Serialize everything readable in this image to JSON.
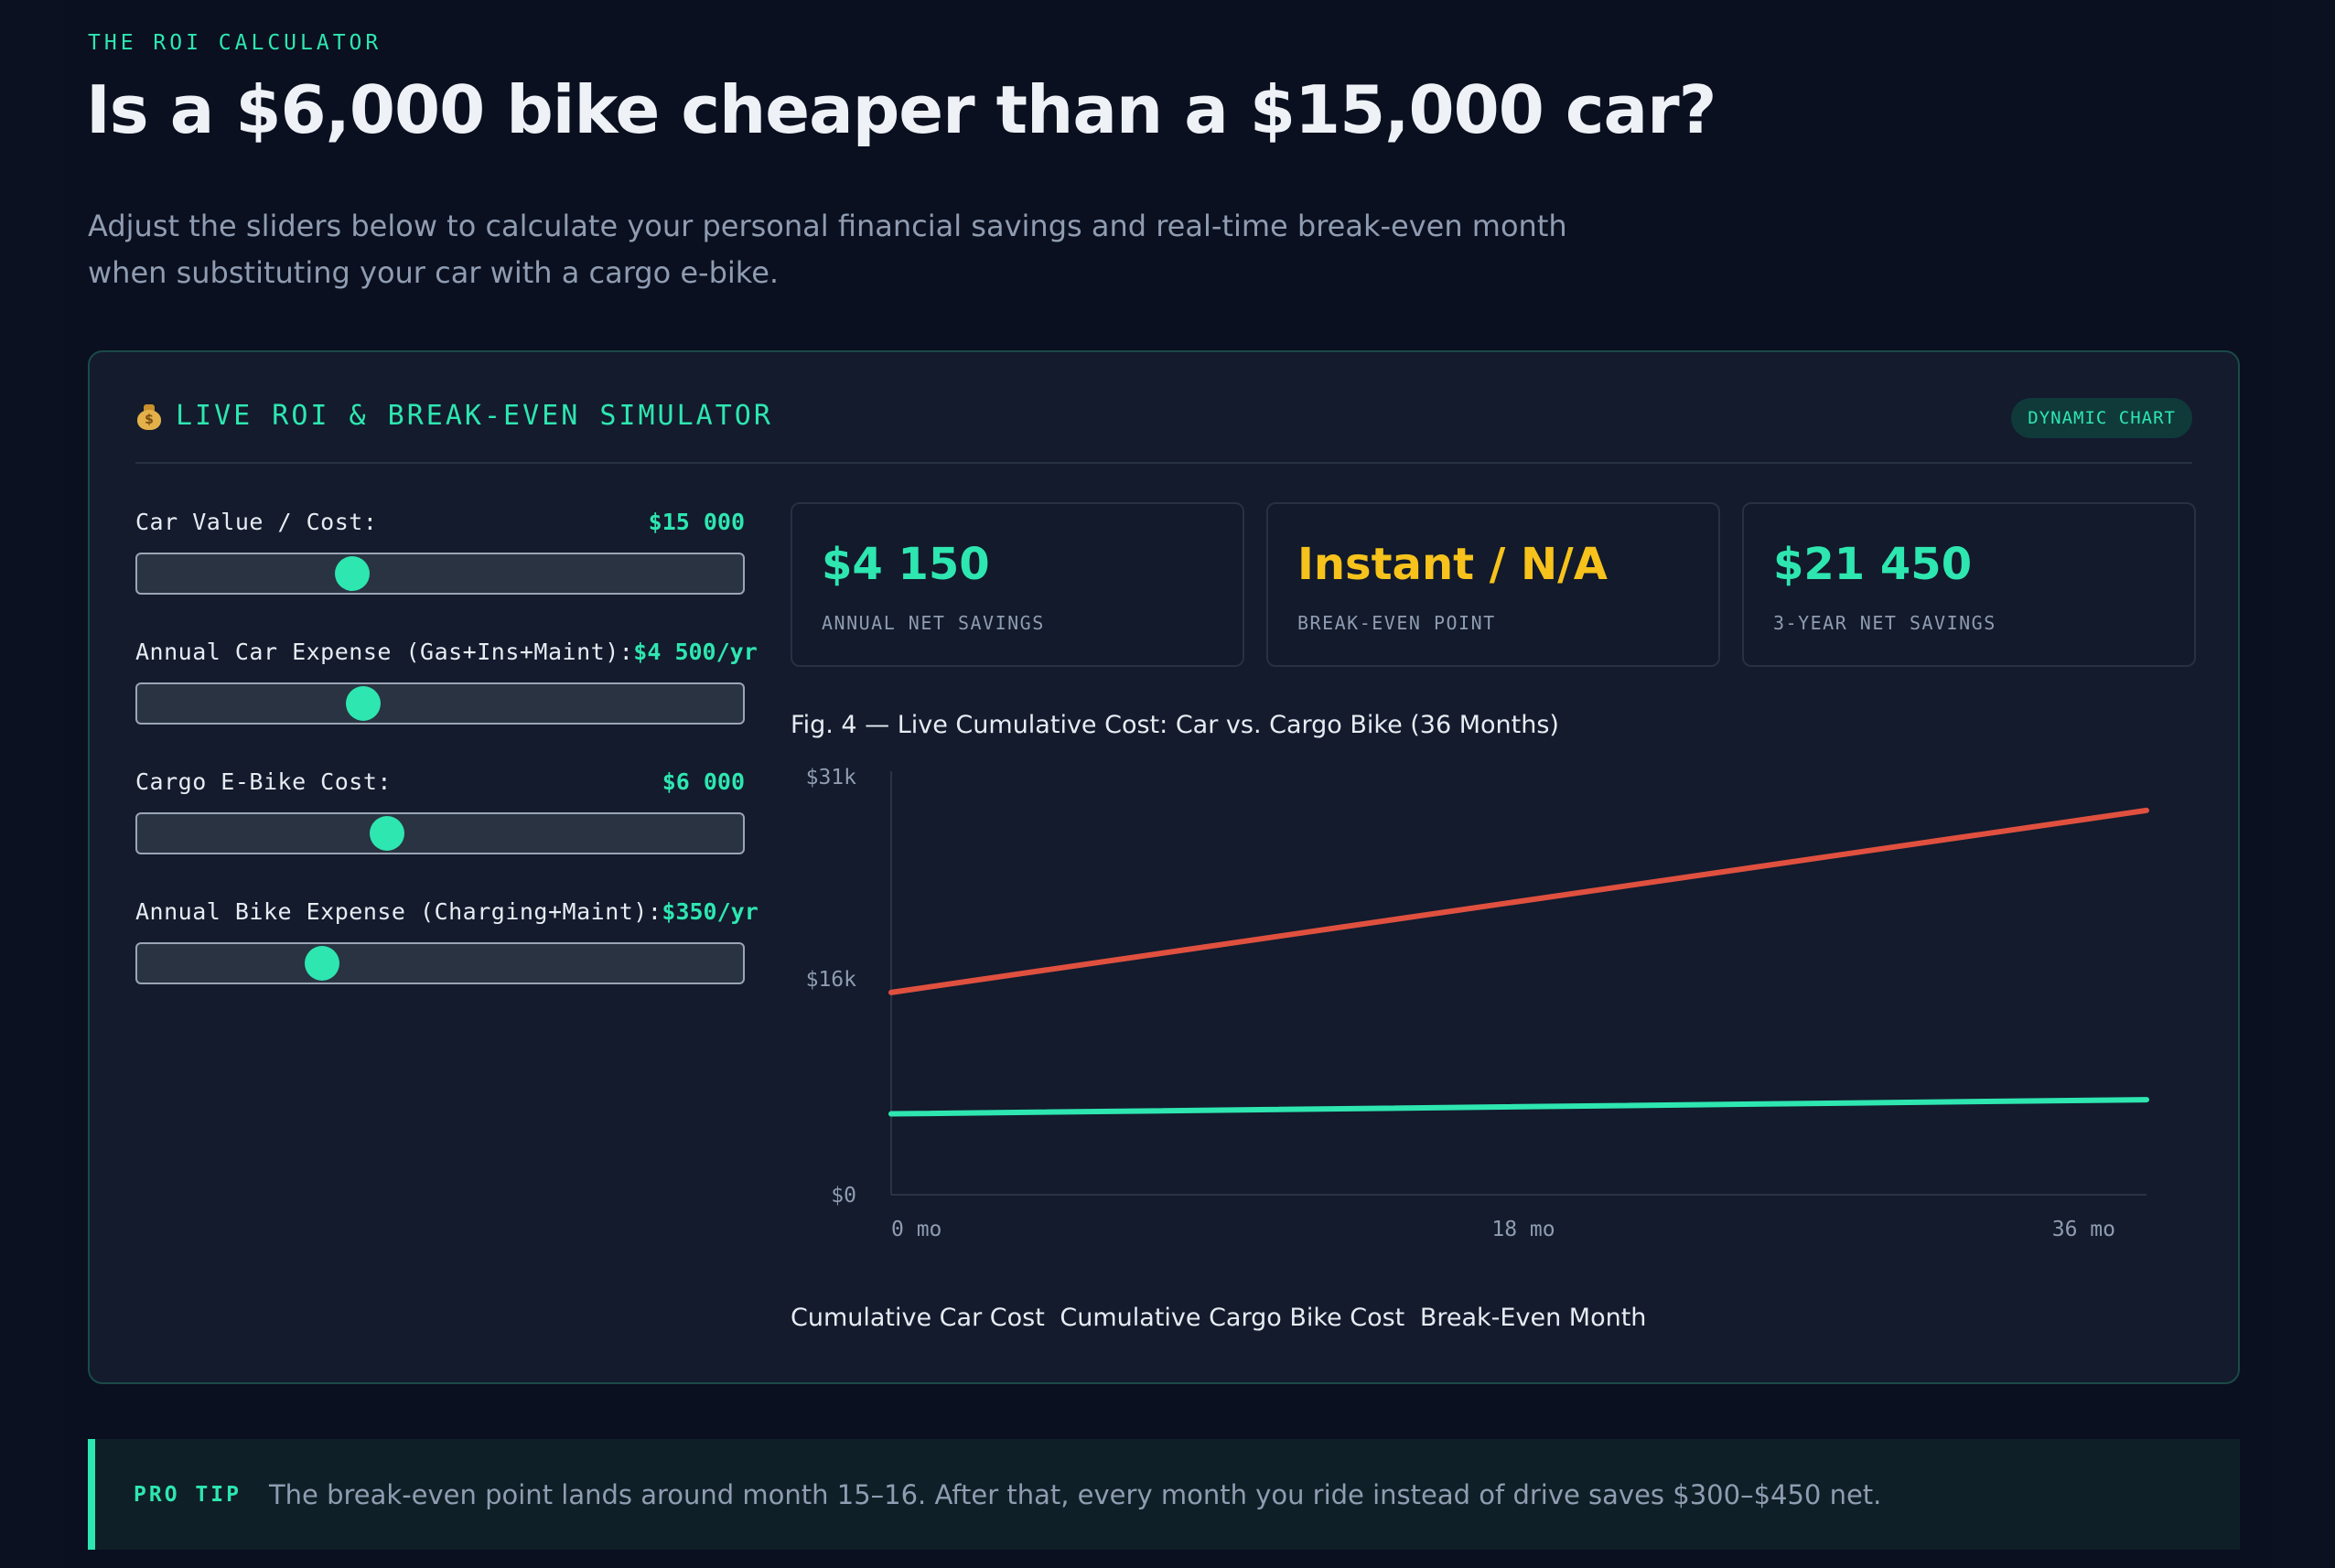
{
  "header": {
    "eyebrow": "THE ROI CALCULATOR",
    "title": "Is a $6,000 bike cheaper than a $15,000 car?",
    "subtitle": "Adjust the sliders below to calculate your personal financial savings and real-time break-even month when substituting your car with a cargo e-bike."
  },
  "simulator": {
    "title": "LIVE ROI & BREAK-EVEN SIMULATOR",
    "icon": "money-bag-icon",
    "badge": "DYNAMIC CHART",
    "controls": [
      {
        "label": "Car Value / Cost:",
        "value": "$15 000",
        "level": 0.355
      },
      {
        "label": "Annual Car Expense (Gas+Ins+Maint):",
        "value": "$4 500/yr",
        "level": 0.373
      },
      {
        "label": "Cargo E-Bike Cost:",
        "value": "$6 000",
        "level": 0.413
      },
      {
        "label": "Annual Bike Expense (Charging+Maint):",
        "value": "$350/yr",
        "level": 0.305
      }
    ],
    "stats": [
      {
        "value": "$4 150",
        "label": "ANNUAL NET SAVINGS",
        "color": "#2ee6b0"
      },
      {
        "value": "Instant / N/A",
        "label": "BREAK-EVEN POINT",
        "color": "#f6c21b"
      },
      {
        "value": "$21 450",
        "label": "3-YEAR NET SAVINGS",
        "color": "#2ee6b0"
      }
    ]
  },
  "chart_data": {
    "type": "line",
    "title": "Fig. 4 — Live Cumulative Cost: Car vs. Cargo Bike (36 Months)",
    "x": [
      0,
      36
    ],
    "xlim": [
      0,
      36
    ],
    "ylim": [
      0,
      31000
    ],
    "y_ticks": [
      "$31k",
      "$16k",
      "$0"
    ],
    "y_tick_values": [
      31000,
      16000,
      0
    ],
    "x_ticks": [
      "0 mo",
      "18 mo",
      "36 mo"
    ],
    "x_tick_values": [
      0,
      18,
      36
    ],
    "series": [
      {
        "name": "Cumulative Car Cost",
        "color": "#e0503f",
        "values": [
          15000,
          28500
        ]
      },
      {
        "name": "Cumulative Cargo Bike Cost",
        "color": "#2ee6b0",
        "values": [
          6000,
          7050
        ]
      }
    ],
    "legend": [
      "Cumulative Car Cost",
      "Cumulative Cargo Bike Cost",
      "Break-Even Month"
    ],
    "grid": false
  },
  "tip": {
    "label": "PRO TIP",
    "text": "The break-even point lands around month 15–16. After that, every month you ride instead of drive saves $300–$450 net."
  }
}
